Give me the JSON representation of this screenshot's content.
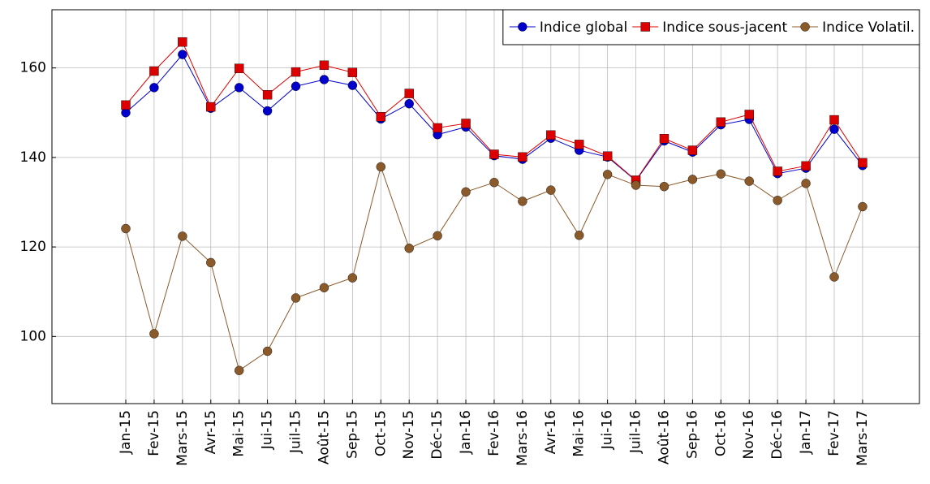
{
  "chart_data": {
    "type": "line",
    "categories": [
      "Jan-15",
      "Fev-15",
      "Mars-15",
      "Avr-15",
      "Mai-15",
      "Jui-15",
      "Juil-15",
      "Août-15",
      "Sep-15",
      "Oct-15",
      "Nov-15",
      "Déc-15",
      "Jan-16",
      "Fev-16",
      "Mars-16",
      "Avr-16",
      "Mai-16",
      "Jui-16",
      "Juil-16",
      "Août-16",
      "Sep-16",
      "Oct-16",
      "Nov-16",
      "Déc-16",
      "Jan-17",
      "Fev-17",
      "Mars-17"
    ],
    "series": [
      {
        "name": "Indice global",
        "color": "#0000cc",
        "marker": "circle",
        "values": [
          150.0,
          155.6,
          163.0,
          151.0,
          155.6,
          150.4,
          155.9,
          157.4,
          156.1,
          148.6,
          152.0,
          145.1,
          146.8,
          140.4,
          139.6,
          144.3,
          141.6,
          140.1,
          134.8,
          143.7,
          141.2,
          147.3,
          148.5,
          136.4,
          137.6,
          146.3,
          138.2
        ]
      },
      {
        "name": "Indice sous-jacent",
        "color": "#dd0000",
        "marker": "square",
        "values": [
          151.7,
          159.3,
          165.8,
          151.3,
          159.9,
          154.0,
          159.1,
          160.6,
          159.0,
          149.1,
          154.3,
          146.6,
          147.6,
          140.7,
          140.1,
          145.0,
          142.9,
          140.3,
          134.9,
          144.2,
          141.6,
          147.9,
          149.6,
          136.9,
          138.1,
          148.4,
          138.8
        ]
      },
      {
        "name": "Indice Volatil.",
        "color": "#8b5a2b",
        "marker": "circle",
        "values": [
          124.1,
          100.6,
          122.4,
          116.5,
          92.4,
          96.7,
          108.6,
          110.9,
          113.1,
          137.9,
          119.7,
          122.5,
          132.3,
          134.4,
          130.2,
          132.7,
          122.6,
          136.2,
          133.8,
          133.5,
          135.1,
          136.3,
          134.7,
          130.4,
          134.2,
          113.3,
          129.0
        ]
      }
    ],
    "ylim": [
      85,
      173
    ],
    "yticks": [
      100,
      120,
      140,
      160
    ],
    "grid": true,
    "legend": "north east"
  }
}
